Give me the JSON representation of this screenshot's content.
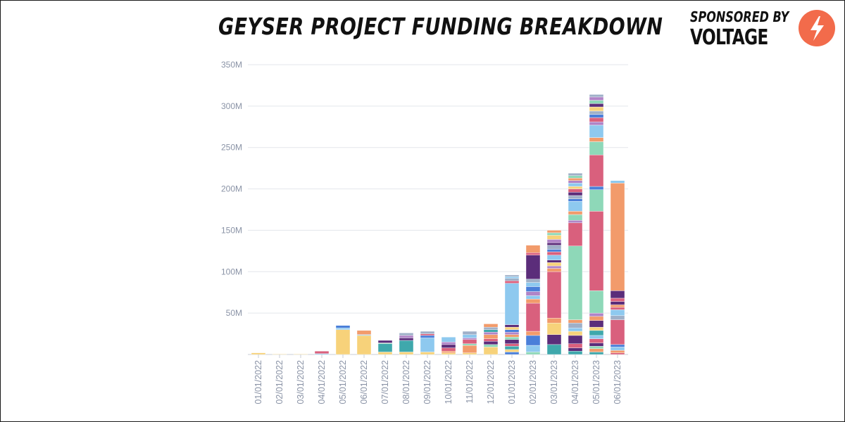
{
  "title": "GEYSER PROJECT FUNDING BREAKDOWN",
  "sponsor": {
    "label": "SPONSORED BY",
    "brand": "VOLTAGE",
    "logo_icon": "lightning-bolt-icon",
    "logo_color": "#f26b4b"
  },
  "colors": {
    "axis_text": "#8a93a6",
    "grid": "#e3e6eb",
    "palette": [
      "#f7d27a",
      "#f29b6b",
      "#d9607d",
      "#5b2d7a",
      "#8ed8b8",
      "#8ec9ef",
      "#3fa8ac",
      "#4a7fd9",
      "#b084c7",
      "#9fb0c8"
    ]
  },
  "chart_data": {
    "type": "bar",
    "stacked": true,
    "title": "GEYSER PROJECT FUNDING BREAKDOWN",
    "xlabel": "",
    "ylabel": "",
    "ylim": [
      0,
      350
    ],
    "y_unit_suffix": "M",
    "yticks": [
      "350M",
      "300M",
      "250M",
      "200M",
      "150M",
      "100M",
      "50M"
    ],
    "grid": true,
    "legend": "none",
    "categories": [
      "01/01/2022",
      "02/01/2022",
      "03/01/2022",
      "04/01/2022",
      "05/01/2022",
      "06/01/2022",
      "07/01/2022",
      "08/01/2022",
      "09/01/2022",
      "10/01/2022",
      "11/01/2022",
      "12/01/2022",
      "01/01/2023",
      "02/01/2023",
      "03/01/2023",
      "04/01/2023",
      "05/01/2023",
      "06/01/2023"
    ],
    "stacks": [
      [
        [
          2,
          "#f7d27a"
        ]
      ],
      [
        [
          0.5,
          "#f7d27a"
        ]
      ],
      [
        [
          0.5,
          "#f7d27a"
        ]
      ],
      [
        [
          1,
          "#8ec9ef"
        ],
        [
          3,
          "#d9607d"
        ]
      ],
      [
        [
          30,
          "#f7d27a"
        ],
        [
          2,
          "#8ec9ef"
        ],
        [
          3,
          "#4a7fd9"
        ]
      ],
      [
        [
          23,
          "#f7d27a"
        ],
        [
          1,
          "#8ec9ef"
        ],
        [
          5,
          "#f29b6b"
        ]
      ],
      [
        [
          3,
          "#f7d27a"
        ],
        [
          10,
          "#3fa8ac"
        ],
        [
          1,
          "#8ed8b8"
        ],
        [
          3,
          "#5b2d7a"
        ]
      ],
      [
        [
          3,
          "#f7d27a"
        ],
        [
          14,
          "#3fa8ac"
        ],
        [
          3,
          "#5b2d7a"
        ],
        [
          3,
          "#b084c7"
        ],
        [
          3,
          "#9fb0c8"
        ]
      ],
      [
        [
          3,
          "#f7d27a"
        ],
        [
          17,
          "#8ec9ef"
        ],
        [
          3,
          "#4a7fd9"
        ],
        [
          2,
          "#d9607d"
        ],
        [
          3,
          "#9fb0c8"
        ]
      ],
      [
        [
          2,
          "#f7d27a"
        ],
        [
          2,
          "#f29b6b"
        ],
        [
          4,
          "#d9607d"
        ],
        [
          4,
          "#5b2d7a"
        ],
        [
          3,
          "#b084c7"
        ],
        [
          6,
          "#8ec9ef"
        ]
      ],
      [
        [
          2,
          "#f7d27a"
        ],
        [
          9,
          "#f29b6b"
        ],
        [
          2,
          "#8ed8b8"
        ],
        [
          5,
          "#d9607d"
        ],
        [
          2,
          "#b084c7"
        ],
        [
          4,
          "#8ec9ef"
        ],
        [
          4,
          "#9fb0c8"
        ]
      ],
      [
        [
          9,
          "#f7d27a"
        ],
        [
          3,
          "#8ed8b8"
        ],
        [
          4,
          "#5b2d7a"
        ],
        [
          3,
          "#d9607d"
        ],
        [
          5,
          "#f29b6b"
        ],
        [
          3,
          "#b084c7"
        ],
        [
          3,
          "#3fa8ac"
        ],
        [
          3,
          "#9fb0c8"
        ],
        [
          4,
          "#f29b6b"
        ]
      ],
      [
        [
          3,
          "#4a7fd9"
        ],
        [
          3,
          "#f7d27a"
        ],
        [
          4,
          "#3fa8ac"
        ],
        [
          3,
          "#d9607d"
        ],
        [
          5,
          "#5b2d7a"
        ],
        [
          3,
          "#8ed8b8"
        ],
        [
          3,
          "#f29b6b"
        ],
        [
          3,
          "#b084c7"
        ],
        [
          3,
          "#4a7fd9"
        ],
        [
          3,
          "#f7d27a"
        ],
        [
          3,
          "#5b2d7a"
        ],
        [
          50,
          "#8ec9ef"
        ],
        [
          3,
          "#d9607d"
        ],
        [
          3,
          "#9fb0c8"
        ],
        [
          2,
          "#8ec9ef"
        ],
        [
          2,
          "#9fb0c8"
        ]
      ],
      [
        [
          3,
          "#8ed8b8"
        ],
        [
          8,
          "#8ec9ef"
        ],
        [
          12,
          "#4a7fd9"
        ],
        [
          5,
          "#f29b6b"
        ],
        [
          34,
          "#d9607d"
        ],
        [
          5,
          "#f29b6b"
        ],
        [
          4,
          "#8ec9ef"
        ],
        [
          5,
          "#b084c7"
        ],
        [
          6,
          "#4a7fd9"
        ],
        [
          5,
          "#8ec9ef"
        ],
        [
          4,
          "#9fb0c8"
        ],
        [
          29,
          "#5b2d7a"
        ],
        [
          3,
          "#d9607d"
        ],
        [
          9,
          "#f29b6b"
        ]
      ],
      [
        [
          12,
          "#3fa8ac"
        ],
        [
          12,
          "#5b2d7a"
        ],
        [
          14,
          "#f7d27a"
        ],
        [
          6,
          "#f29b6b"
        ],
        [
          56,
          "#d9607d"
        ],
        [
          4,
          "#f29b6b"
        ],
        [
          3,
          "#b084c7"
        ],
        [
          4,
          "#f7d27a"
        ],
        [
          3,
          "#5b2d7a"
        ],
        [
          6,
          "#8ec9ef"
        ],
        [
          4,
          "#d9607d"
        ],
        [
          3,
          "#4a7fd9"
        ],
        [
          5,
          "#9fb0c8"
        ],
        [
          3,
          "#5b2d7a"
        ],
        [
          4,
          "#b084c7"
        ],
        [
          5,
          "#f7d27a"
        ],
        [
          3,
          "#8ed8b8"
        ],
        [
          3,
          "#f29b6b"
        ]
      ],
      [
        [
          4,
          "#3fa8ac"
        ],
        [
          4,
          "#5b2d7a"
        ],
        [
          5,
          "#d9607d"
        ],
        [
          10,
          "#5b2d7a"
        ],
        [
          5,
          "#f7d27a"
        ],
        [
          4,
          "#8ec9ef"
        ],
        [
          6,
          "#9fb0c8"
        ],
        [
          4,
          "#f29b6b"
        ],
        [
          89,
          "#8ed8b8"
        ],
        [
          28,
          "#d9607d"
        ],
        [
          3,
          "#b084c7"
        ],
        [
          7,
          "#8ed8b8"
        ],
        [
          4,
          "#f29b6b"
        ],
        [
          12,
          "#8ec9ef"
        ],
        [
          3,
          "#4a7fd9"
        ],
        [
          4,
          "#9fb0c8"
        ],
        [
          4,
          "#5b2d7a"
        ],
        [
          4,
          "#d9607d"
        ],
        [
          3,
          "#f7d27a"
        ],
        [
          4,
          "#8ec9ef"
        ],
        [
          3,
          "#b084c7"
        ],
        [
          3,
          "#f29b6b"
        ],
        [
          3,
          "#8ed8b8"
        ],
        [
          3,
          "#9fb0c8"
        ]
      ],
      [
        [
          3,
          "#3fa8ac"
        ],
        [
          4,
          "#f29b6b"
        ],
        [
          3,
          "#8ed8b8"
        ],
        [
          4,
          "#5b2d7a"
        ],
        [
          5,
          "#d9607d"
        ],
        [
          4,
          "#8ec9ef"
        ],
        [
          6,
          "#3fa8ac"
        ],
        [
          4,
          "#f7d27a"
        ],
        [
          8,
          "#5b2d7a"
        ],
        [
          5,
          "#f29b6b"
        ],
        [
          4,
          "#b084c7"
        ],
        [
          27,
          "#8ed8b8"
        ],
        [
          96,
          "#d9607d"
        ],
        [
          26,
          "#8ed8b8"
        ],
        [
          4,
          "#4a7fd9"
        ],
        [
          38,
          "#d9607d"
        ],
        [
          16,
          "#8ed8b8"
        ],
        [
          5,
          "#f29b6b"
        ],
        [
          15,
          "#8ec9ef"
        ],
        [
          4,
          "#b084c7"
        ],
        [
          5,
          "#d9607d"
        ],
        [
          4,
          "#4a7fd9"
        ],
        [
          4,
          "#9fb0c8"
        ],
        [
          5,
          "#f7d27a"
        ],
        [
          4,
          "#5b2d7a"
        ],
        [
          4,
          "#8ed8b8"
        ],
        [
          4,
          "#b084c7"
        ],
        [
          3,
          "#9fb0c8"
        ]
      ],
      [
        [
          2,
          "#d9607d"
        ],
        [
          3,
          "#f29b6b"
        ],
        [
          4,
          "#8ec9ef"
        ],
        [
          3,
          "#4a7fd9"
        ],
        [
          30,
          "#d9607d"
        ],
        [
          5,
          "#9fb0c8"
        ],
        [
          7,
          "#8ec9ef"
        ],
        [
          3,
          "#d9607d"
        ],
        [
          3,
          "#f29b6b"
        ],
        [
          4,
          "#5b2d7a"
        ],
        [
          4,
          "#d9607d"
        ],
        [
          9,
          "#5b2d7a"
        ],
        [
          130,
          "#f29b6b"
        ],
        [
          3,
          "#8ec9ef"
        ]
      ]
    ]
  }
}
